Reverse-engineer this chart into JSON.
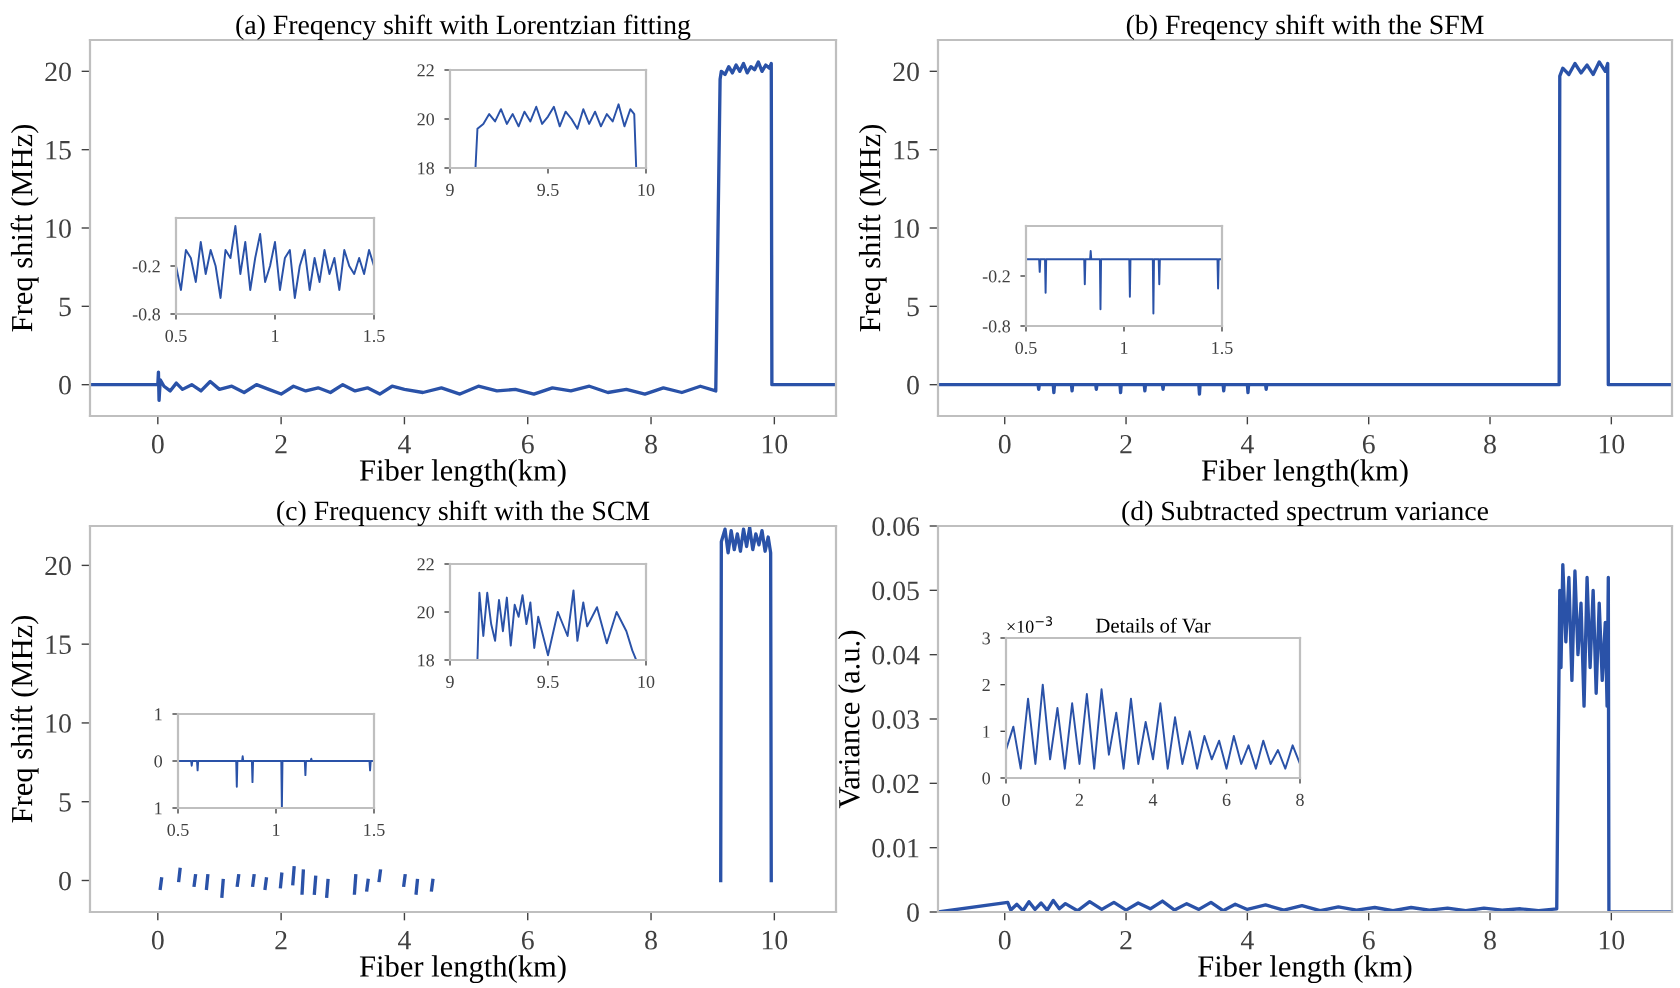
{
  "chart_data": [
    {
      "type": "line",
      "title": "(a) Freqency shift with Lorentzian fitting",
      "xlabel": "Fiber length(km)",
      "ylabel": "Freq shift (MHz)",
      "xlim": [
        -1.1,
        11
      ],
      "ylim": [
        -2,
        22
      ],
      "xticks": [
        0,
        2,
        4,
        6,
        8,
        10
      ],
      "yticks": [
        0,
        5,
        10,
        15,
        20
      ],
      "series": [
        {
          "color": "#2a52a8",
          "x": [
            -1.1,
            0,
            0.01,
            0.02,
            0.04,
            0.1,
            0.2,
            0.3,
            0.4,
            0.55,
            0.7,
            0.85,
            1.0,
            1.2,
            1.4,
            1.6,
            1.8,
            2.0,
            2.2,
            2.4,
            2.6,
            2.8,
            3.0,
            3.2,
            3.4,
            3.6,
            3.8,
            4.0,
            4.3,
            4.6,
            4.9,
            5.2,
            5.5,
            5.8,
            6.1,
            6.4,
            6.7,
            7.0,
            7.3,
            7.6,
            7.9,
            8.2,
            8.5,
            8.8,
            9.05,
            9.12,
            9.14,
            9.2,
            9.26,
            9.32,
            9.38,
            9.44,
            9.5,
            9.56,
            9.62,
            9.68,
            9.74,
            9.8,
            9.86,
            9.92,
            9.95,
            9.96,
            11
          ],
          "values": [
            0,
            0,
            0.8,
            -1.0,
            0.3,
            -0.1,
            -0.4,
            0.1,
            -0.3,
            0.0,
            -0.4,
            0.2,
            -0.3,
            -0.1,
            -0.5,
            0.0,
            -0.3,
            -0.6,
            -0.1,
            -0.4,
            -0.2,
            -0.5,
            0.0,
            -0.4,
            -0.2,
            -0.6,
            -0.1,
            -0.3,
            -0.5,
            -0.2,
            -0.6,
            -0.1,
            -0.4,
            -0.3,
            -0.6,
            -0.2,
            -0.4,
            -0.1,
            -0.5,
            -0.3,
            -0.6,
            -0.2,
            -0.5,
            -0.1,
            -0.4,
            19.5,
            20.0,
            19.8,
            20.3,
            19.9,
            20.4,
            20.0,
            20.5,
            19.9,
            20.3,
            20.1,
            20.6,
            20.0,
            20.4,
            20.2,
            20.5,
            0,
            0
          ]
        }
      ]
    },
    {
      "type": "line",
      "title": "(b) Freqency shift with the SFM",
      "xlabel": "Fiber length(km)",
      "ylabel": "Freq shift (MHz)",
      "xlim": [
        -1.1,
        11
      ],
      "ylim": [
        -2,
        22
      ],
      "xticks": [
        0,
        2,
        4,
        6,
        8,
        10
      ],
      "yticks": [
        0,
        5,
        10,
        15,
        20
      ],
      "series": [
        {
          "color": "#2a52a8",
          "x": [
            -1.1,
            0.55,
            0.56,
            0.57,
            0.8,
            0.81,
            0.82,
            1.1,
            1.11,
            1.12,
            1.5,
            1.51,
            1.52,
            1.9,
            1.91,
            1.92,
            2.3,
            2.31,
            2.32,
            2.6,
            2.61,
            2.62,
            3.2,
            3.21,
            3.22,
            3.6,
            3.61,
            3.62,
            4.0,
            4.01,
            4.02,
            4.3,
            4.31,
            4.32,
            9.14,
            9.15,
            9.2,
            9.3,
            9.4,
            9.5,
            9.6,
            9.7,
            9.8,
            9.9,
            9.94,
            9.95,
            11
          ],
          "values": [
            0,
            0,
            -0.3,
            0,
            0,
            -0.5,
            0,
            0,
            -0.4,
            0,
            0,
            -0.3,
            0,
            0,
            -0.5,
            0,
            0,
            -0.4,
            0,
            0,
            -0.3,
            0,
            0,
            -0.6,
            0,
            0,
            -0.4,
            0,
            0,
            -0.5,
            0,
            0,
            -0.3,
            0,
            0,
            19.7,
            20.2,
            19.8,
            20.5,
            19.9,
            20.4,
            19.8,
            20.6,
            20.0,
            20.5,
            0,
            0
          ]
        }
      ]
    },
    {
      "type": "line",
      "title": "(c) Frequency shift with the SCM",
      "xlabel": "Fiber length(km)",
      "ylabel": "Freq shift (MHz)",
      "xlim": [
        -1.1,
        11
      ],
      "ylim": [
        -2,
        22.5
      ],
      "xticks": [
        0,
        2,
        4,
        6,
        8,
        10
      ],
      "yticks": [
        0,
        5,
        10,
        15,
        20
      ],
      "series": [
        {
          "color": "#2a52a8",
          "x": [
            0.04,
            0.06,
            0.07,
            0.34,
            0.36,
            0.37,
            0.59,
            0.61,
            0.62,
            0.79,
            0.81,
            0.82,
            1.04,
            1.06,
            1.07,
            1.29,
            1.31,
            1.32,
            1.54,
            1.56,
            1.57,
            1.74,
            1.76,
            1.77,
            1.99,
            2.01,
            2.02,
            2.19,
            2.21,
            2.22,
            2.34,
            2.36,
            2.37,
            2.54,
            2.56,
            2.57,
            2.74,
            2.76,
            2.77,
            3.19,
            3.21,
            3.22,
            3.39,
            3.41,
            3.42,
            3.59,
            3.61,
            3.62,
            3.99,
            4.01,
            4.02,
            4.19,
            4.21,
            4.22,
            4.44,
            4.46,
            4.47,
            9.13,
            9.14,
            9.2,
            9.25,
            9.3,
            9.35,
            9.4,
            9.45,
            9.5,
            9.55,
            9.6,
            9.65,
            9.7,
            9.75,
            9.8,
            9.85,
            9.9,
            9.94,
            9.95
          ],
          "values": [
            -0.5,
            0.1,
            null,
            0,
            0.7,
            null,
            -0.3,
            0.3,
            null,
            -0.5,
            0.3,
            null,
            -1.0,
            0,
            null,
            -0.3,
            0.3,
            null,
            -0.3,
            0.3,
            null,
            -0.5,
            0.1,
            null,
            -0.4,
            0.4,
            null,
            -0.2,
            0.8,
            null,
            -0.8,
            0.6,
            null,
            -0.8,
            0.2,
            null,
            -1.0,
            0,
            null,
            -0.8,
            0.3,
            null,
            -0.6,
            0,
            null,
            0,
            0.6,
            null,
            -0.3,
            0.3,
            null,
            -0.8,
            0,
            null,
            -0.6,
            0,
            null,
            0,
            21.5,
            22.3,
            20.8,
            22.2,
            21.0,
            22.0,
            20.9,
            22.3,
            21.2,
            22.4,
            21.0,
            22.0,
            21.3,
            22.2,
            20.9,
            21.8,
            20.8,
            0
          ]
        }
      ]
    },
    {
      "type": "line",
      "title": "(d) Subtracted spectrum variance",
      "xlabel": "Fiber length (km)",
      "ylabel": "Variance (a.u.)",
      "xlim": [
        -1.1,
        11
      ],
      "ylim": [
        0,
        0.06
      ],
      "xticks": [
        0,
        2,
        4,
        6,
        8,
        10
      ],
      "yticks": [
        0,
        0.01,
        0.02,
        0.03,
        0.04,
        0.05,
        0.06
      ],
      "series": [
        {
          "color": "#2a52a8",
          "x": [
            -1.1,
            0.05,
            0.1,
            0.2,
            0.3,
            0.4,
            0.5,
            0.6,
            0.7,
            0.8,
            0.9,
            1.0,
            1.2,
            1.4,
            1.6,
            1.8,
            2.0,
            2.2,
            2.4,
            2.6,
            2.8,
            3.0,
            3.2,
            3.4,
            3.6,
            3.8,
            4.0,
            4.3,
            4.6,
            4.9,
            5.2,
            5.5,
            5.8,
            6.1,
            6.4,
            6.7,
            7.0,
            7.3,
            7.6,
            7.9,
            8.2,
            8.5,
            8.8,
            9.1,
            9.15,
            9.17,
            9.2,
            9.25,
            9.3,
            9.35,
            9.4,
            9.45,
            9.5,
            9.55,
            9.6,
            9.65,
            9.7,
            9.75,
            9.8,
            9.85,
            9.9,
            9.93,
            9.95,
            9.96,
            11
          ],
          "values": [
            0,
            0.0015,
            0.0003,
            0.0012,
            0.0002,
            0.0016,
            0.0004,
            0.0014,
            0.0003,
            0.0018,
            0.0005,
            0.0013,
            0.0002,
            0.0016,
            0.0004,
            0.0015,
            0.0003,
            0.0014,
            0.0005,
            0.0017,
            0.0003,
            0.0013,
            0.0004,
            0.0015,
            0.0002,
            0.0012,
            0.0004,
            0.0011,
            0.0003,
            0.001,
            0.0002,
            0.0008,
            0.0003,
            0.0007,
            0.0002,
            0.0007,
            0.0003,
            0.0006,
            0.0002,
            0.0006,
            0.0003,
            0.0005,
            0.0002,
            0.0005,
            0.05,
            0.038,
            0.054,
            0.042,
            0.052,
            0.036,
            0.053,
            0.04,
            0.048,
            0.032,
            0.052,
            0.038,
            0.05,
            0.034,
            0.048,
            0.036,
            0.045,
            0.032,
            0.052,
            0,
            0
          ]
        }
      ]
    },
    {
      "type": "line",
      "xlim": [
        0.5,
        1.5
      ],
      "ylim": [
        -0.8,
        0.4
      ],
      "xticks": [
        0.5,
        1,
        1.5
      ],
      "yticks": [
        -0.8,
        -0.2
      ],
      "series": [
        {
          "color": "#2a52a8",
          "x": [
            0.5,
            0.525,
            0.55,
            0.575,
            0.6,
            0.625,
            0.65,
            0.675,
            0.7,
            0.725,
            0.75,
            0.775,
            0.8,
            0.825,
            0.85,
            0.875,
            0.9,
            0.925,
            0.95,
            0.975,
            1.0,
            1.025,
            1.05,
            1.075,
            1.1,
            1.125,
            1.15,
            1.175,
            1.2,
            1.225,
            1.25,
            1.275,
            1.3,
            1.325,
            1.35,
            1.375,
            1.4,
            1.425,
            1.45,
            1.475,
            1.5
          ],
          "values": [
            -0.2,
            -0.5,
            0.0,
            -0.1,
            -0.4,
            0.1,
            -0.3,
            0.0,
            -0.2,
            -0.6,
            0.0,
            -0.1,
            0.3,
            -0.3,
            0.1,
            -0.5,
            -0.1,
            0.2,
            -0.4,
            -0.2,
            0.1,
            -0.5,
            -0.1,
            0.0,
            -0.6,
            -0.2,
            0.0,
            -0.5,
            -0.1,
            -0.4,
            0.0,
            -0.3,
            -0.1,
            -0.5,
            0.0,
            -0.2,
            -0.3,
            -0.1,
            -0.3,
            0.0,
            -0.2
          ]
        }
      ]
    },
    {
      "type": "line",
      "xlim": [
        9,
        10
      ],
      "ylim": [
        18,
        22
      ],
      "xticks": [
        9,
        9.5,
        10
      ],
      "yticks": [
        18,
        20,
        22
      ],
      "series": [
        {
          "color": "#2a52a8",
          "x": [
            9.13,
            9.14,
            9.17,
            9.2,
            9.23,
            9.26,
            9.29,
            9.32,
            9.35,
            9.38,
            9.41,
            9.44,
            9.47,
            9.5,
            9.53,
            9.56,
            9.59,
            9.62,
            9.65,
            9.68,
            9.71,
            9.74,
            9.77,
            9.8,
            9.83,
            9.86,
            9.89,
            9.92,
            9.94,
            9.95
          ],
          "values": [
            18,
            19.6,
            19.8,
            20.2,
            19.9,
            20.4,
            19.8,
            20.2,
            19.7,
            20.3,
            19.9,
            20.5,
            19.8,
            20.1,
            20.5,
            19.7,
            20.3,
            20.0,
            19.6,
            20.4,
            19.8,
            20.3,
            19.7,
            20.2,
            19.9,
            20.6,
            19.7,
            20.4,
            20.2,
            18
          ]
        }
      ]
    },
    {
      "type": "line",
      "xlim": [
        0.5,
        1.5
      ],
      "ylim": [
        -0.8,
        0.4
      ],
      "xticks": [
        0.5,
        1,
        1.5
      ],
      "yticks": [
        -0.8,
        -0.2
      ],
      "series": [
        {
          "color": "#2a52a8",
          "x": [
            0.5,
            0.567,
            0.57,
            0.573,
            0.597,
            0.6,
            0.603,
            0.797,
            0.8,
            0.803,
            0.827,
            0.83,
            0.833,
            0.877,
            0.88,
            0.883,
            1.027,
            1.03,
            1.033,
            1.147,
            1.15,
            1.153,
            1.177,
            1.18,
            1.183,
            1.477,
            1.48,
            1.483,
            1.5
          ],
          "values": [
            0,
            0,
            -0.15,
            0,
            0,
            -0.4,
            0,
            0,
            -0.3,
            0,
            0,
            0.1,
            0,
            0,
            -0.6,
            0,
            0,
            -0.45,
            0,
            0,
            -0.65,
            0,
            0,
            -0.3,
            0,
            0,
            -0.35,
            0,
            0
          ]
        }
      ]
    },
    {
      "type": "line",
      "xlim": [
        0.5,
        1.5
      ],
      "ylim": [
        -1,
        1
      ],
      "xticks": [
        0.5,
        1,
        1.5
      ],
      "yticks": [
        {
          "value": -1,
          "label": "1"
        },
        0,
        1
      ],
      "series": [
        {
          "color": "#2a52a8",
          "x": [
            0.5,
            0.567,
            0.57,
            0.573,
            0.597,
            0.6,
            0.603,
            0.797,
            0.8,
            0.803,
            0.827,
            0.83,
            0.833,
            0.877,
            0.88,
            0.883,
            1.027,
            1.03,
            1.033,
            1.147,
            1.15,
            1.153,
            1.177,
            1.18,
            1.183,
            1.477,
            1.48,
            1.483,
            1.5
          ],
          "values": [
            0,
            0,
            -0.1,
            0,
            0,
            -0.2,
            0,
            0,
            -0.55,
            0,
            0,
            0.1,
            0,
            0,
            -0.45,
            0,
            0,
            -1.0,
            0,
            0,
            -0.3,
            0,
            0,
            0.05,
            0,
            0,
            -0.2,
            0,
            0
          ]
        }
      ]
    },
    {
      "type": "line",
      "xlim": [
        9,
        10
      ],
      "ylim": [
        18,
        22
      ],
      "xticks": [
        9,
        9.5,
        10
      ],
      "yticks": [
        18,
        20,
        22
      ],
      "series": [
        {
          "color": "#2a52a8",
          "x": [
            9.14,
            9.15,
            9.17,
            9.19,
            9.21,
            9.23,
            9.25,
            9.27,
            9.29,
            9.31,
            9.33,
            9.35,
            9.37,
            9.39,
            9.41,
            9.43,
            9.45,
            9.5,
            9.55,
            9.6,
            9.63,
            9.65,
            9.68,
            9.7,
            9.75,
            9.8,
            9.85,
            9.9,
            9.93,
            9.95
          ],
          "values": [
            18,
            20.8,
            19.0,
            20.8,
            19.5,
            18.8,
            20.5,
            19.2,
            20.6,
            18.6,
            20.3,
            19.8,
            20.7,
            19.5,
            20.4,
            18.5,
            19.8,
            18.2,
            20.0,
            19.0,
            20.9,
            18.8,
            20.4,
            19.4,
            20.2,
            18.7,
            20.0,
            19.2,
            18.4,
            18
          ]
        }
      ]
    },
    {
      "type": "line",
      "title": "Details of Var",
      "annotations": [
        "×10$^{−3}$"
      ],
      "xlim": [
        0,
        8
      ],
      "ylim": [
        0,
        3
      ],
      "xticks": [
        0,
        2,
        4,
        6,
        8
      ],
      "yticks": [
        0,
        1,
        2,
        3
      ],
      "series": [
        {
          "color": "#2a52a8",
          "x": [
            0,
            0.2,
            0.4,
            0.6,
            0.8,
            1.0,
            1.2,
            1.4,
            1.6,
            1.8,
            2.0,
            2.2,
            2.4,
            2.6,
            2.8,
            3.0,
            3.2,
            3.4,
            3.6,
            3.8,
            4.0,
            4.2,
            4.4,
            4.6,
            4.8,
            5.0,
            5.2,
            5.4,
            5.6,
            5.8,
            6.0,
            6.2,
            6.4,
            6.6,
            6.8,
            7.0,
            7.2,
            7.4,
            7.6,
            7.8,
            8.0
          ],
          "values": [
            0.6,
            1.1,
            0.2,
            1.7,
            0.3,
            2.0,
            0.4,
            1.5,
            0.2,
            1.6,
            0.3,
            1.8,
            0.2,
            1.9,
            0.5,
            1.4,
            0.2,
            1.7,
            0.3,
            1.2,
            0.4,
            1.6,
            0.2,
            1.3,
            0.3,
            1.0,
            0.2,
            0.9,
            0.4,
            0.8,
            0.2,
            0.9,
            0.3,
            0.7,
            0.2,
            0.8,
            0.3,
            0.6,
            0.2,
            0.7,
            0.3
          ]
        }
      ]
    }
  ]
}
